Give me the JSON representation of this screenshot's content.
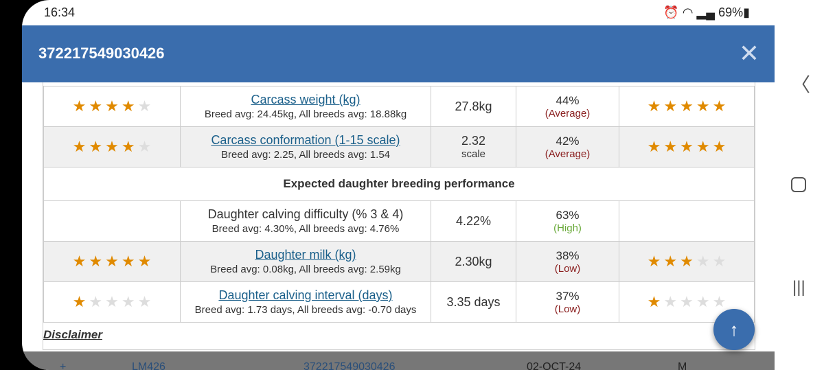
{
  "status_bar": {
    "time": "16:34",
    "battery": "69%"
  },
  "header": {
    "title": "372217549030426",
    "close_icon": "close-icon"
  },
  "table": {
    "rows": [
      {
        "stars_left": 4,
        "trait": "Carcass weight (kg)",
        "link": true,
        "sub": "Breed avg: 24.45kg, All breeds avg: 18.88kg",
        "value": "27.8kg",
        "unit": "",
        "reliability": "44%",
        "category": "(Average)",
        "stars_right": 5,
        "alt": false
      },
      {
        "stars_left": 4,
        "trait": "Carcass conformation (1-15 scale)",
        "link": true,
        "sub": "Breed avg: 2.25, All breeds avg: 1.54",
        "value": "2.32",
        "unit": "scale",
        "reliability": "42%",
        "category": "(Average)",
        "stars_right": 5,
        "alt": true
      }
    ],
    "section_title": "Expected daughter breeding performance",
    "rows2": [
      {
        "stars_left": 0,
        "trait": "Daughter calving difficulty (% 3 & 4)",
        "link": false,
        "sub": "Breed avg: 4.30%, All breeds avg: 4.76%",
        "value": "4.22%",
        "unit": "",
        "reliability": "63%",
        "category": "(High)",
        "stars_right": 0,
        "alt": false
      },
      {
        "stars_left": 5,
        "trait": "Daughter milk (kg)",
        "link": true,
        "sub": "Breed avg: 0.08kg, All breeds avg: 2.59kg",
        "value": "2.30kg",
        "unit": "",
        "reliability": "38%",
        "category": "(Low)",
        "stars_right": 3,
        "alt": true
      },
      {
        "stars_left": 1,
        "trait": "Daughter calving interval (days)",
        "link": true,
        "sub": "Breed avg: 1.73 days, All breeds avg: -0.70 days",
        "value": "3.35 days",
        "unit": "",
        "reliability": "37%",
        "category": "(Low)",
        "stars_right": 1,
        "alt": false
      }
    ]
  },
  "disclaimer": "Disclaimer",
  "scroll_top": "↑",
  "behind_row": {
    "plus": "+",
    "code": "LM426",
    "id": "372217549030426",
    "date": "02-OCT-24",
    "sex": "M"
  },
  "colors": {
    "header": "#3a6dad",
    "star": "#e08a00",
    "low": "#8b2020",
    "high": "#6aaa3a"
  }
}
